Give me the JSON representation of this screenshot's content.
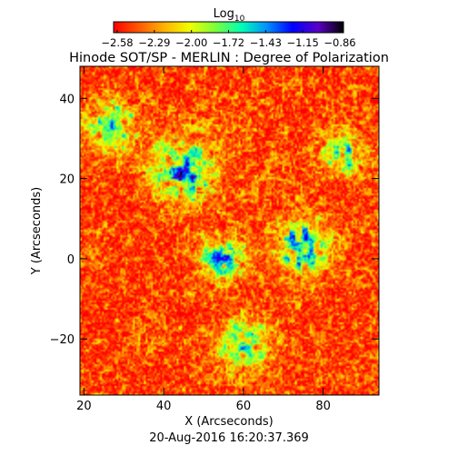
{
  "chart_data": {
    "type": "heatmap",
    "title": "Hinode SOT/SP - MERLIN : Degree of Polarization",
    "subtitle": "20-Aug-2016 16:20:37.369",
    "xlabel": "X (Arcseconds)",
    "ylabel": "Y (Arcseconds)",
    "xlim": [
      19,
      94
    ],
    "ylim": [
      -34,
      48
    ],
    "xticks": [
      20,
      40,
      60,
      80
    ],
    "yticks": [
      -20,
      0,
      20,
      40
    ],
    "grid": false,
    "colorbar": {
      "title": "Log10",
      "title_base": "Log",
      "title_sub": "10",
      "scale": "log",
      "range": [
        -2.58,
        -0.86
      ],
      "tick_labels": [
        "-2.58",
        "-2.29",
        "-2.00",
        "-1.72",
        "-1.43",
        "-1.15",
        "-0.86"
      ],
      "colors": [
        "#ff0000",
        "#ff5a00",
        "#ffb400",
        "#f0ff00",
        "#78ff3c",
        "#00ffb4",
        "#0090ff",
        "#0000ff",
        "#5a00c8",
        "#000000"
      ]
    },
    "field_description_features": {
      "background_level": -2.5,
      "strong_regions": [
        {
          "x": 45,
          "y": 22,
          "radius": 6,
          "level": -1.0
        },
        {
          "x": 55,
          "y": 0,
          "radius": 4,
          "level": -0.9
        },
        {
          "x": 75,
          "y": 3,
          "radius": 5,
          "level": -1.05
        },
        {
          "x": 27,
          "y": 33,
          "radius": 5,
          "level": -1.4
        },
        {
          "x": 60,
          "y": -22,
          "radius": 5,
          "level": -1.3
        },
        {
          "x": 85,
          "y": 26,
          "radius": 4,
          "level": -1.35
        }
      ]
    }
  }
}
